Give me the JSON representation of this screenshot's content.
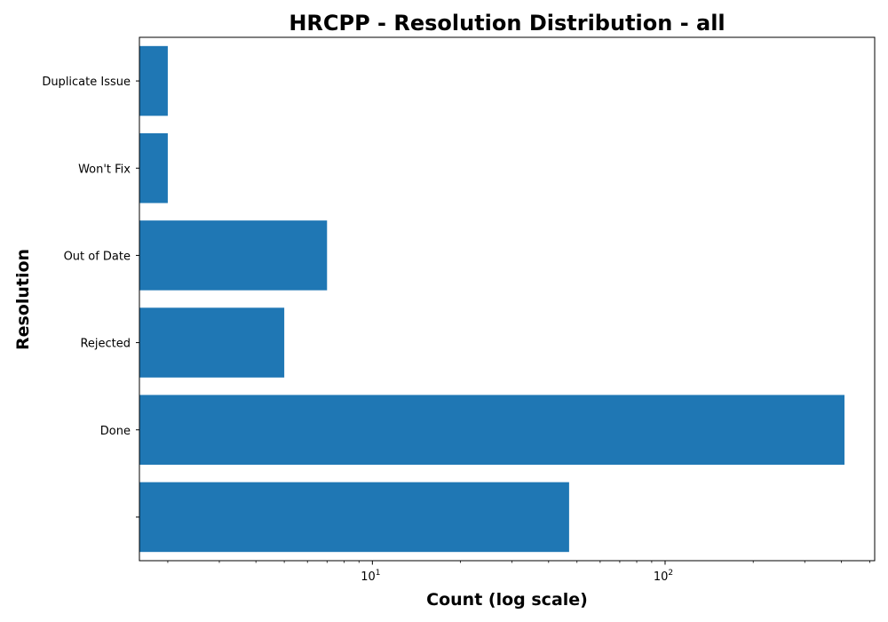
{
  "chart_data": {
    "type": "bar",
    "orientation": "horizontal",
    "title": "HRCPP - Resolution Distribution - all",
    "xlabel": "Count (log scale)",
    "ylabel": "Resolution",
    "x_scale": "log",
    "xlim": [
      1.6,
      520
    ],
    "x_major_ticks": [
      {
        "value": 10,
        "base": "10",
        "exponent": "1"
      },
      {
        "value": 100,
        "base": "10",
        "exponent": "2"
      }
    ],
    "categories": [
      "",
      "Done",
      "Rejected",
      "Out of Date",
      "Won't Fix",
      "Duplicate Issue"
    ],
    "values": [
      47,
      410,
      5,
      7,
      2,
      2
    ],
    "color": "#1f77b4",
    "grid": false,
    "legend": false
  }
}
